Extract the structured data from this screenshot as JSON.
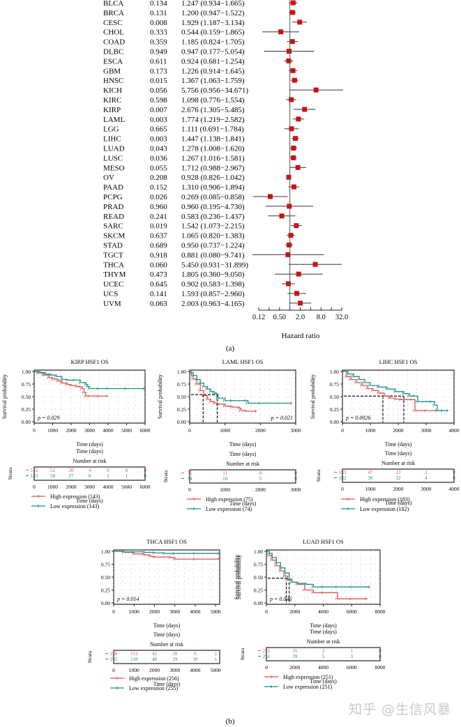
{
  "chart_data": [
    {
      "type": "forest",
      "panel_label": "(a)",
      "xlabel": "Hazard ratio",
      "x_scale": "log2",
      "xlim": [
        0.125,
        32
      ],
      "xticks": [
        "0.12",
        "0.50",
        "2.0",
        "8.0",
        "32.0"
      ],
      "reference_line": 1.0,
      "rows": [
        {
          "cancer": "BLCA",
          "p": "0.134",
          "hr": 1.247,
          "lo": 0.934,
          "hi": 1.665,
          "text": "1.247 (0.934−1.665)"
        },
        {
          "cancer": "BRCA",
          "p": "0.131",
          "hr": 1.2,
          "lo": 0.947,
          "hi": 1.522,
          "text": "1.200 (0.947−1.522)"
        },
        {
          "cancer": "CESC",
          "p": "0.008",
          "hr": 1.929,
          "lo": 1.187,
          "hi": 3.134,
          "text": "1.929 (1.187−3.134)"
        },
        {
          "cancer": "CHOL",
          "p": "0.333",
          "hr": 0.544,
          "lo": 0.159,
          "hi": 1.865,
          "text": "0.544 (0.159−1.865)"
        },
        {
          "cancer": "COAD",
          "p": "0.359",
          "hr": 1.185,
          "lo": 0.824,
          "hi": 1.705,
          "text": "1.185 (0.824−1.705)"
        },
        {
          "cancer": "DLBC",
          "p": "0.949",
          "hr": 0.947,
          "lo": 0.177,
          "hi": 5.054,
          "text": "0.947 (0.177−5.054)"
        },
        {
          "cancer": "ESCA",
          "p": "0.611",
          "hr": 0.924,
          "lo": 0.681,
          "hi": 1.254,
          "text": "0.924 (0.681−1.254)"
        },
        {
          "cancer": "GBM",
          "p": "0.173",
          "hr": 1.226,
          "lo": 0.914,
          "hi": 1.645,
          "text": "1.226 (0.914−1.645)"
        },
        {
          "cancer": "HNSC",
          "p": "0.015",
          "hr": 1.367,
          "lo": 1.063,
          "hi": 1.759,
          "text": "1.367 (1.063−1.759)"
        },
        {
          "cancer": "KICH",
          "p": "0.056",
          "hr": 5.756,
          "lo": 0.956,
          "hi": 34.671,
          "text": "5.756 (0.956−34.671)"
        },
        {
          "cancer": "KIRC",
          "p": "0.598",
          "hr": 1.098,
          "lo": 0.776,
          "hi": 1.554,
          "text": "1.098 (0.776−1.554)"
        },
        {
          "cancer": "KIRP",
          "p": "0.007",
          "hr": 2.676,
          "lo": 1.305,
          "hi": 5.485,
          "text": "2.676 (1.305−5.485)"
        },
        {
          "cancer": "LAML",
          "p": "0.003",
          "hr": 1.774,
          "lo": 1.219,
          "hi": 2.582,
          "text": "1.774 (1.219−2.582)"
        },
        {
          "cancer": "LGG",
          "p": "0.665",
          "hr": 1.111,
          "lo": 0.691,
          "hi": 1.784,
          "text": "1.111 (0.691−1.784)"
        },
        {
          "cancer": "LIHC",
          "p": "0.003",
          "hr": 1.447,
          "lo": 1.138,
          "hi": 1.841,
          "text": "1.447 (1.138−1.841)"
        },
        {
          "cancer": "LUAD",
          "p": "0.043",
          "hr": 1.278,
          "lo": 1.008,
          "hi": 1.62,
          "text": "1.278 (1.008−1.620)"
        },
        {
          "cancer": "LUSC",
          "p": "0.036",
          "hr": 1.267,
          "lo": 1.016,
          "hi": 1.581,
          "text": "1.267 (1.016−1.581)"
        },
        {
          "cancer": "MESO",
          "p": "0.055",
          "hr": 1.712,
          "lo": 0.988,
          "hi": 2.967,
          "text": "1.712 (0.988−2.967)"
        },
        {
          "cancer": "OV",
          "p": "0.208",
          "hr": 0.928,
          "lo": 0.826,
          "hi": 1.042,
          "text": "0.928 (0.826−1.042)"
        },
        {
          "cancer": "PAAD",
          "p": "0.152",
          "hr": 1.31,
          "lo": 0.906,
          "hi": 1.894,
          "text": "1.310 (0.906−1.894)"
        },
        {
          "cancer": "PCPG",
          "p": "0.026",
          "hr": 0.269,
          "lo": 0.085,
          "hi": 0.858,
          "text": "0.269 (0.085−0.858)"
        },
        {
          "cancer": "PRAD",
          "p": "0.960",
          "hr": 0.96,
          "lo": 0.195,
          "hi": 4.73,
          "text": "0.960 (0.195−4.730)"
        },
        {
          "cancer": "READ",
          "p": "0.241",
          "hr": 0.583,
          "lo": 0.236,
          "hi": 1.437,
          "text": "0.583 (0.236−1.437)"
        },
        {
          "cancer": "SARC",
          "p": "0.019",
          "hr": 1.542,
          "lo": 1.073,
          "hi": 2.215,
          "text": "1.542 (1.073−2.215)"
        },
        {
          "cancer": "SKCM",
          "p": "0.637",
          "hr": 1.065,
          "lo": 0.82,
          "hi": 1.383,
          "text": "1.065 (0.820−1.383)"
        },
        {
          "cancer": "STAD",
          "p": "0.689",
          "hr": 0.95,
          "lo": 0.737,
          "hi": 1.224,
          "text": "0.950 (0.737−1.224)"
        },
        {
          "cancer": "TGCT",
          "p": "0.918",
          "hr": 0.881,
          "lo": 0.08,
          "hi": 9.741,
          "text": "0.881 (0.080−9.741)"
        },
        {
          "cancer": "THCA",
          "p": "0.060",
          "hr": 5.45,
          "lo": 0.931,
          "hi": 31.899,
          "text": "5.450 (0.931−31.899)"
        },
        {
          "cancer": "THYM",
          "p": "0.473",
          "hr": 1.805,
          "lo": 0.36,
          "hi": 9.05,
          "text": "1.805 (0.360−9.050)"
        },
        {
          "cancer": "UCEC",
          "p": "0.645",
          "hr": 0.902,
          "lo": 0.583,
          "hi": 1.398,
          "text": "0.902 (0.583−1.398)"
        },
        {
          "cancer": "UCS",
          "p": "0.141",
          "hr": 1.593,
          "lo": 0.857,
          "hi": 2.96,
          "text": "1.593 (0.857−2.960)"
        },
        {
          "cancer": "UVM",
          "p": "0.063",
          "hr": 2.003,
          "lo": 0.963,
          "hi": 4.165,
          "text": "2.003 (0.963−4.165)"
        }
      ],
      "colors": {
        "marker": "#cc1111",
        "line": "#333333"
      }
    },
    {
      "type": "line",
      "subtype": "kaplan-meier",
      "panel_label": "(b)",
      "colors": {
        "high": "#d9534f",
        "low": "#1a8f84"
      },
      "ylabel": "Survival probability",
      "xlabel": "Time (days)",
      "risk_title": "Number at risk",
      "risk_ylabel": "Strata",
      "yticks": [
        "0.00",
        "0.25",
        "0.50",
        "0.75",
        "1.00"
      ],
      "ylim": [
        0,
        1
      ],
      "plots": [
        {
          "title": "KIRP HSF1 OS",
          "xlim": [
            0,
            6000
          ],
          "xticks": [
            0,
            1000,
            2000,
            3000,
            4000,
            5000,
            6000
          ],
          "pvalue": "p = 0.029",
          "pvalue_pos": "bottom-left",
          "median_lines": [],
          "series": [
            {
              "name": "High expression (143)",
              "key": "high",
              "x": [
                0,
                200,
                500,
                800,
                1000,
                1300,
                1500,
                1800,
                2000,
                2300,
                2500,
                2600,
                2700,
                2800,
                3000,
                3500,
                4000
              ],
              "y": [
                1.0,
                0.97,
                0.93,
                0.88,
                0.85,
                0.81,
                0.77,
                0.74,
                0.72,
                0.7,
                0.7,
                0.66,
                0.58,
                0.51,
                0.51,
                0.51,
                0.51
              ]
            },
            {
              "name": "Low expression (143)",
              "key": "low",
              "x": [
                0,
                300,
                600,
                900,
                1200,
                1500,
                1800,
                2200,
                2500,
                2800,
                2900,
                3000,
                3500,
                4000,
                5000,
                6000
              ],
              "y": [
                1.0,
                0.98,
                0.95,
                0.93,
                0.9,
                0.84,
                0.83,
                0.83,
                0.78,
                0.74,
                0.7,
                0.66,
                0.66,
                0.66,
                0.66,
                0.66
              ]
            }
          ],
          "risk": {
            "times": [
              0,
              1000,
              2000,
              3000,
              4000,
              5000,
              6000
            ],
            "high": [
              143,
              52,
              20,
              4,
              0,
              0,
              0
            ],
            "low": [
              143,
              58,
              27,
              8,
              1,
              1,
              0
            ]
          }
        },
        {
          "title": "LAML HSF1 OS",
          "xlim": [
            0,
            3000
          ],
          "xticks": [
            0,
            1000,
            2000,
            3000
          ],
          "pvalue": "p = 0.021",
          "pvalue_pos": "bottom-right",
          "median_lines": [
            {
              "y": 0.54,
              "x": [
                380,
                780
              ]
            }
          ],
          "series": [
            {
              "name": "High expression (75)",
              "key": "high",
              "x": [
                0,
                50,
                100,
                200,
                300,
                400,
                500,
                600,
                700,
                800,
                1000,
                1200,
                1400,
                1450,
                1600,
                1900
              ],
              "y": [
                0.97,
                0.92,
                0.85,
                0.75,
                0.62,
                0.52,
                0.45,
                0.4,
                0.37,
                0.35,
                0.31,
                0.29,
                0.27,
                0.22,
                0.21,
                0.21
              ]
            },
            {
              "name": "Low expression (74)",
              "key": "low",
              "x": [
                0,
                50,
                100,
                200,
                300,
                400,
                500,
                600,
                700,
                760,
                800,
                1000,
                1200,
                1600,
                1650,
                2000,
                2900
              ],
              "y": [
                1.0,
                0.98,
                0.92,
                0.84,
                0.77,
                0.7,
                0.65,
                0.6,
                0.57,
                0.55,
                0.47,
                0.42,
                0.42,
                0.42,
                0.37,
                0.37,
                0.37
              ]
            }
          ],
          "risk": {
            "times": [
              0,
              1000,
              2000,
              3000
            ],
            "high": [
              75,
              11,
              0,
              0
            ],
            "low": [
              74,
              18,
              5,
              0
            ]
          }
        },
        {
          "title": "LIHC HSF1 OS",
          "xlim": [
            0,
            4000
          ],
          "xticks": [
            0,
            1000,
            2000,
            3000,
            4000
          ],
          "pvalue": "p = 0.0026",
          "pvalue_pos": "bottom-left",
          "median_lines": [
            {
              "y": 0.51,
              "x": [
                1450,
                2200
              ]
            }
          ],
          "series": [
            {
              "name": "High expression (183)",
              "key": "high",
              "x": [
                0,
                150,
                300,
                500,
                700,
                900,
                1100,
                1300,
                1500,
                1700,
                1900,
                2100,
                2500,
                2600,
                3000,
                3600
              ],
              "y": [
                1.0,
                0.9,
                0.84,
                0.78,
                0.72,
                0.66,
                0.62,
                0.57,
                0.51,
                0.47,
                0.45,
                0.44,
                0.44,
                0.22,
                0.22,
                0.22
              ]
            },
            {
              "name": "Low expression (182)",
              "key": "low",
              "x": [
                0,
                200,
                400,
                600,
                800,
                1000,
                1300,
                1600,
                1900,
                2200,
                2400,
                2600,
                2700,
                3200,
                3300,
                3400,
                3800
              ],
              "y": [
                1.0,
                0.95,
                0.9,
                0.84,
                0.78,
                0.72,
                0.69,
                0.65,
                0.6,
                0.56,
                0.51,
                0.51,
                0.4,
                0.4,
                0.33,
                0.22,
                0.22
              ]
            }
          ],
          "risk": {
            "times": [
              0,
              1000,
              2000,
              3000,
              4000
            ],
            "high": [
              183,
              47,
              13,
              2,
              0
            ],
            "low": [
              182,
              36,
              22,
              4,
              0
            ]
          }
        },
        {
          "title": "THCA HSF1 OS",
          "xlim": [
            0,
            5200
          ],
          "xticks": [
            0,
            1000,
            2000,
            3000,
            4000,
            5000
          ],
          "pvalue": "p = 0.014",
          "pvalue_pos": "bottom-left",
          "median_lines": [],
          "series": [
            {
              "name": "High expression (256)",
              "key": "high",
              "x": [
                0,
                500,
                1000,
                1500,
                1800,
                2000,
                2800,
                3000,
                4000,
                5200
              ],
              "y": [
                1.0,
                0.98,
                0.95,
                0.93,
                0.9,
                0.89,
                0.88,
                0.85,
                0.85,
                0.85
              ]
            },
            {
              "name": "Low expression (255)",
              "key": "low",
              "x": [
                0,
                500,
                1000,
                1500,
                2000,
                2500,
                3000,
                4000,
                5200
              ],
              "y": [
                1.0,
                0.99,
                0.99,
                0.98,
                0.97,
                0.96,
                0.96,
                0.96,
                0.96
              ]
            }
          ],
          "risk": {
            "times": [
              0,
              1000,
              2000,
              3000,
              4000,
              5000
            ],
            "high": [
              256,
              113,
              42,
              18,
              6,
              2
            ],
            "low": [
              255,
              118,
              40,
              19,
              10,
              1
            ]
          }
        },
        {
          "title": "LUAD HSF1 OS",
          "xlim": [
            0,
            8000
          ],
          "xticks": [
            0,
            2000,
            4000,
            6000,
            8000
          ],
          "pvalue": "p = 0.046",
          "pvalue_pos": "bottom-left",
          "median_lines": [
            {
              "y": 0.48,
              "x": [
                1400,
                1600
              ]
            }
          ],
          "series": [
            {
              "name": "High expression (251)",
              "key": "high",
              "x": [
                0,
                200,
                400,
                700,
                1000,
                1300,
                1500,
                1800,
                2200,
                2700,
                3300,
                4000,
                5000,
                6000,
                7100
              ],
              "y": [
                1.0,
                0.92,
                0.83,
                0.72,
                0.62,
                0.52,
                0.45,
                0.4,
                0.36,
                0.25,
                0.2,
                0.2,
                0.08,
                0.08,
                0.08
              ]
            },
            {
              "name": "Low expression (251)",
              "key": "low",
              "x": [
                0,
                200,
                400,
                700,
                1000,
                1300,
                1600,
                1800,
                2200,
                2800,
                3300,
                4000,
                5000,
                6000,
                7300
              ],
              "y": [
                1.0,
                0.96,
                0.88,
                0.78,
                0.68,
                0.58,
                0.46,
                0.4,
                0.38,
                0.36,
                0.31,
                0.31,
                0.31,
                0.31,
                0.31
              ]
            }
          ],
          "risk": {
            "times": [
              0,
              2000,
              4000,
              6000,
              8000
            ],
            "high": [
              251,
              35,
              3,
              1,
              0
            ],
            "low": [
              251,
              39,
              5,
              3,
              0
            ]
          }
        }
      ]
    }
  ],
  "watermark": "知乎 @生信风暴"
}
